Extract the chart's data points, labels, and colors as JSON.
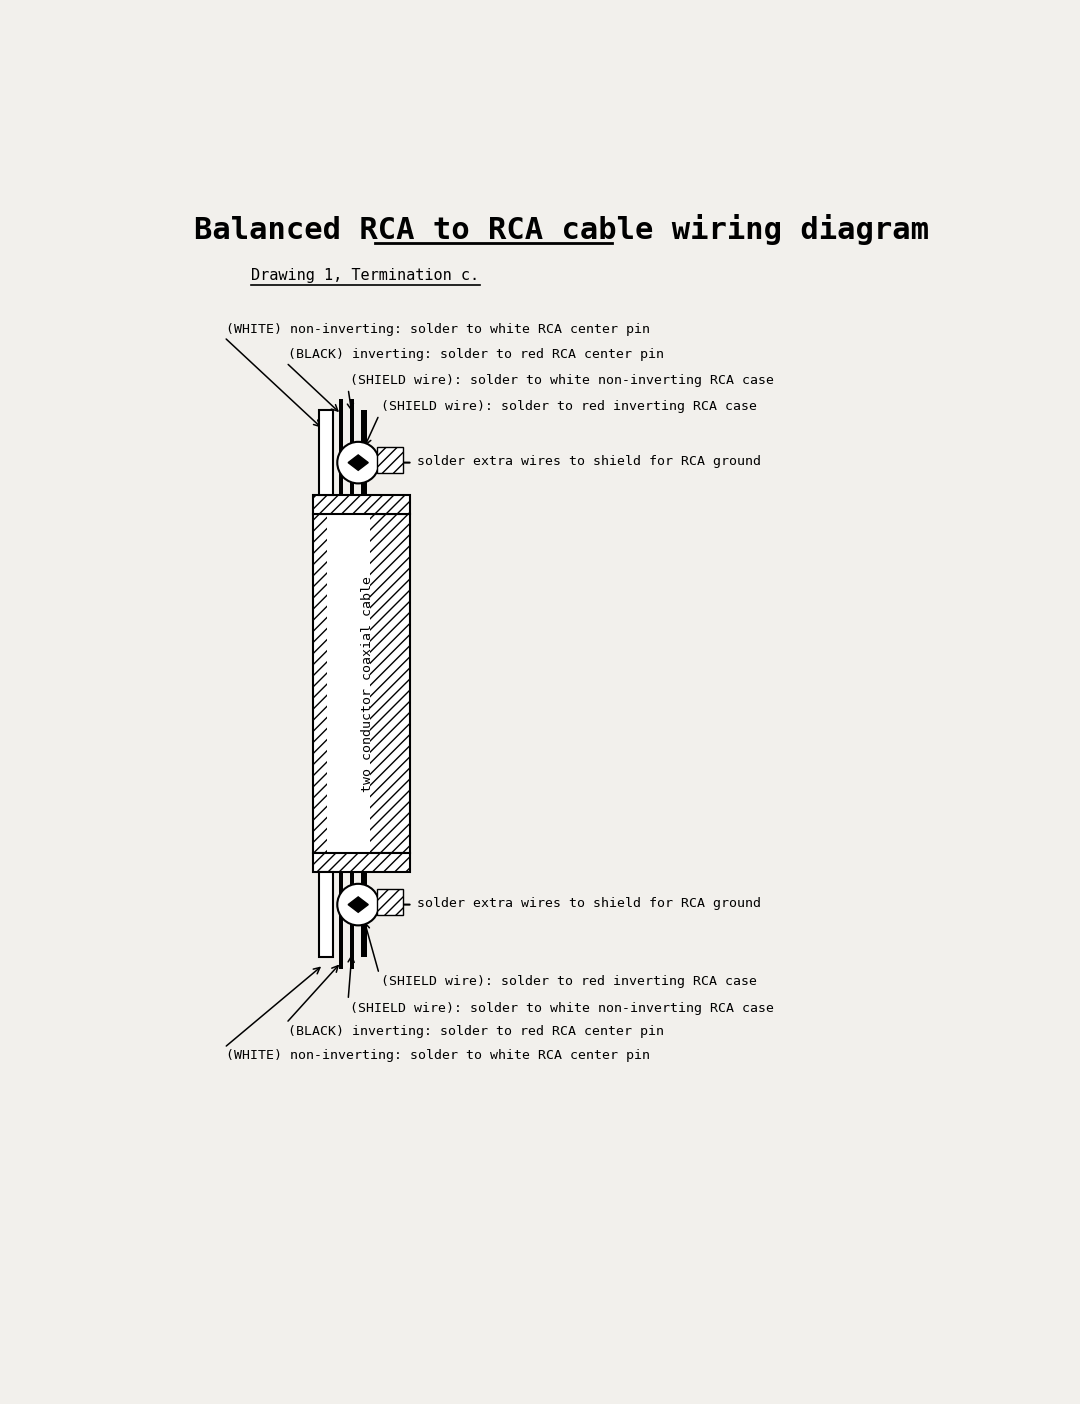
{
  "title": "Balanced RCA to RCA cable wiring diagram",
  "subtitle": "Drawing 1, Termination c.",
  "bg_color": "#f2f0ec",
  "text_color": "#000000",
  "title_fontsize": 22,
  "subtitle_fontsize": 11,
  "label_fontsize": 9.5,
  "annotations_top": [
    "(WHITE) non-inverting: solder to white RCA center pin",
    "(BLACK) inverting: solder to red RCA center pin",
    "(SHIELD wire): solder to white non-inverting RCA case",
    "(SHIELD wire): solder to red inverting RCA case",
    "solder extra wires to shield for RCA ground"
  ],
  "annotations_bottom": [
    "solder extra wires to shield for RCA ground",
    "(SHIELD wire): solder to red inverting RCA case",
    "(SHIELD wire): solder to white non-inverting RCA case",
    "(BLACK) inverting: solder to red RCA center pin",
    "(WHITE) non-inverting: solder to white RCA center pin"
  ],
  "cable_label": "two conductor coaxial cable"
}
